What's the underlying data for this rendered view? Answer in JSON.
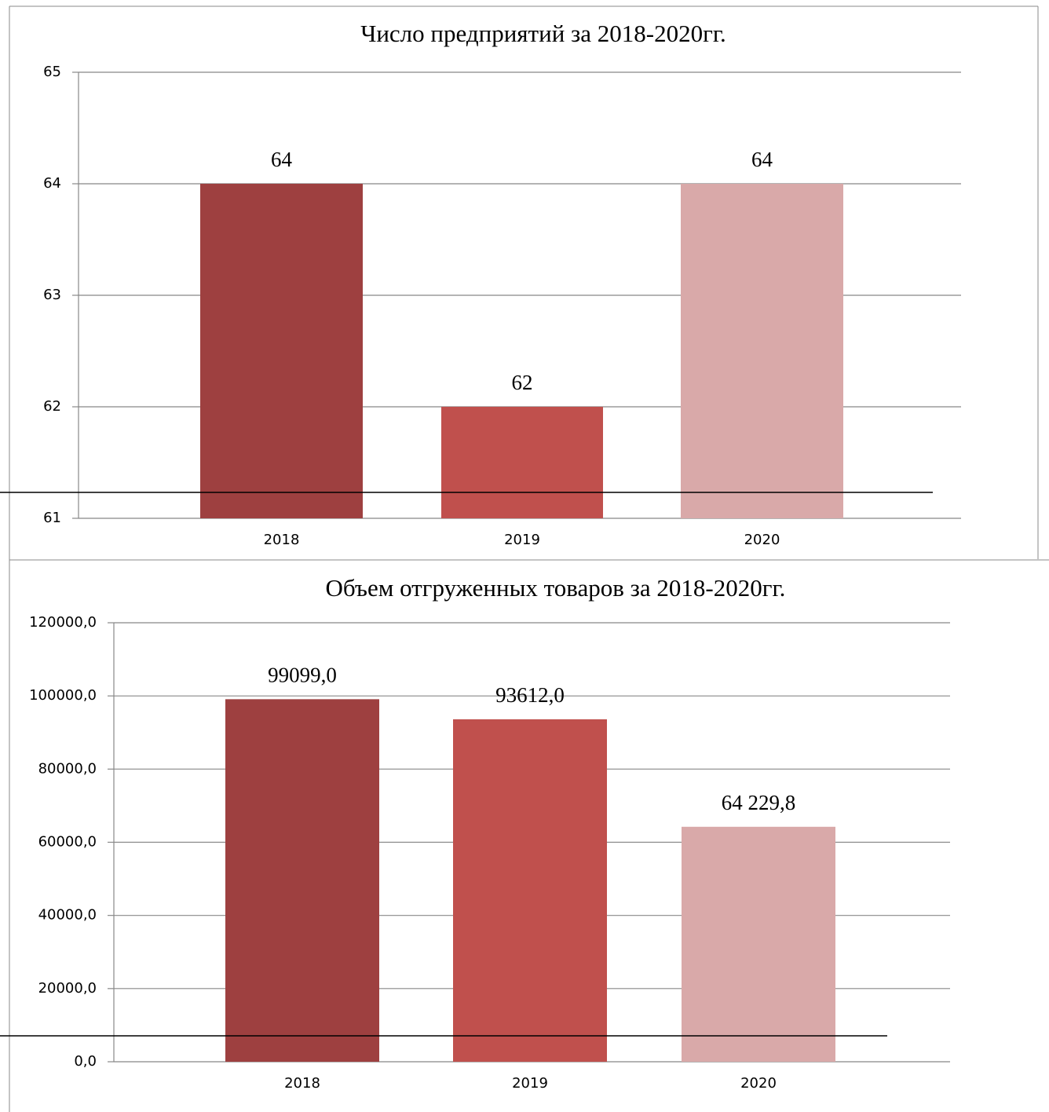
{
  "chart_data": [
    {
      "type": "bar",
      "title": "Число предприятий за 2018-2020гг.",
      "categories": [
        "2018",
        "2019",
        "2020"
      ],
      "values": [
        64,
        62,
        64
      ],
      "colors": [
        "#9e4040",
        "#c0504d",
        "#d9a9a9"
      ],
      "ylim": [
        61,
        65
      ],
      "yticks": [
        61,
        62,
        63,
        64,
        65
      ],
      "grid": true
    },
    {
      "type": "bar",
      "title": "Объем отгруженных товаров за 2018-2020гг.",
      "categories": [
        "2018",
        "2019",
        "2020"
      ],
      "values": [
        99099,
        93612,
        64229.8
      ],
      "value_labels": [
        "99099,0",
        "93612,0",
        "64 229,8"
      ],
      "colors": [
        "#9e4040",
        "#c0504d",
        "#d9a9a9"
      ],
      "ylim": [
        0,
        120000
      ],
      "yticks": [
        {
          "value": 0,
          "label": "0,0"
        },
        {
          "value": 20000,
          "label": "20000,0"
        },
        {
          "value": 40000,
          "label": "40000,0"
        },
        {
          "value": 60000,
          "label": "60000,0"
        },
        {
          "value": 80000,
          "label": "80000,0"
        },
        {
          "value": 100000,
          "label": "100000,0"
        },
        {
          "value": 120000,
          "label": "120000,0"
        }
      ],
      "grid": true
    }
  ]
}
